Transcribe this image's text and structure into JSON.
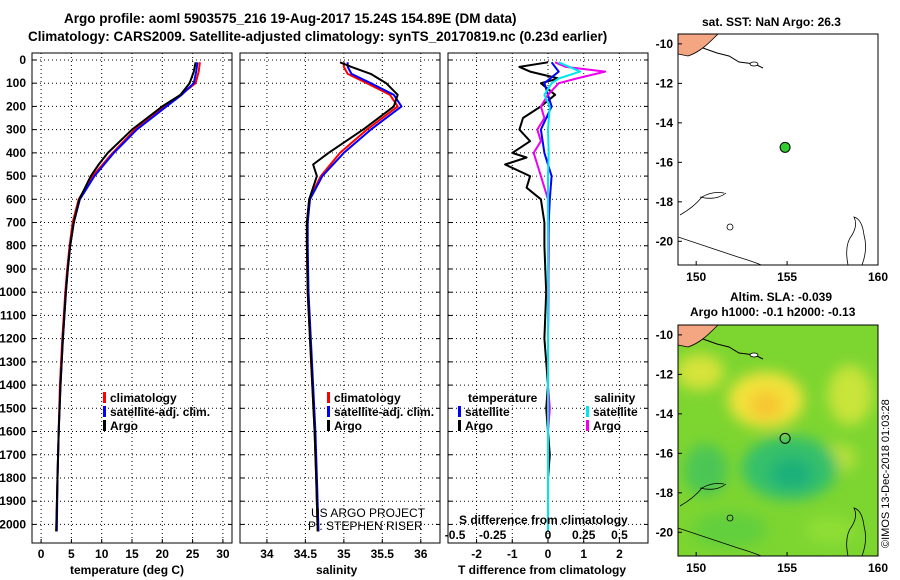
{
  "header": {
    "line1": "Argo profile: aoml 5903575_216 19-Aug-2017 15.24S 154.89E (DM data)",
    "line2": "Climatology: CARS2009. Satellite-adjusted climatology: synTS_20170819.nc (0.23d earlier)"
  },
  "colors": {
    "climatology": "#ff0000",
    "satellite": "#0000ff",
    "argo": "#000000",
    "sal_satellite": "#00e5ee",
    "sal_argo": "#ee00ee",
    "land": "#f4a582",
    "float_marker": "#33cc33"
  },
  "depth_axis": {
    "ticks": [
      0,
      100,
      200,
      300,
      400,
      500,
      600,
      700,
      800,
      900,
      1000,
      1100,
      1200,
      1300,
      1400,
      1500,
      1600,
      1700,
      1800,
      1900,
      2000
    ],
    "ylim": [
      2080,
      -30
    ]
  },
  "chart_data": [
    {
      "name": "temperature",
      "type": "line",
      "xlabel": "temperature (deg C)",
      "xlim": [
        -1.5,
        31.5
      ],
      "xticks": [
        0,
        5,
        10,
        15,
        20,
        25,
        30
      ],
      "ylabel": "depth",
      "legend": {
        "climatology": "climatology",
        "satellite": "satellite-adj. clim.",
        "argo": "Argo"
      },
      "series": [
        {
          "name": "climatology",
          "color_key": "climatology",
          "depth": [
            10,
            50,
            100,
            150,
            200,
            300,
            400,
            500,
            600,
            700,
            800,
            900,
            1000,
            1200,
            1400,
            1600,
            1800,
            2030
          ],
          "values": [
            26.2,
            26.0,
            25.5,
            23.0,
            20.5,
            15.5,
            11.8,
            8.5,
            6.2,
            5.2,
            4.7,
            4.3,
            4.0,
            3.5,
            3.1,
            2.9,
            2.7,
            2.5
          ]
        },
        {
          "name": "satellite-adj. clim.",
          "color_key": "satellite",
          "depth": [
            10,
            50,
            100,
            150,
            200,
            300,
            400,
            500,
            600,
            700,
            800,
            900,
            1000,
            1200,
            1400,
            1600,
            1800,
            2030
          ],
          "values": [
            25.8,
            25.6,
            25.2,
            23.2,
            20.7,
            15.8,
            12.0,
            8.8,
            6.4,
            5.4,
            4.8,
            4.4,
            4.1,
            3.6,
            3.2,
            2.9,
            2.7,
            2.6
          ]
        },
        {
          "name": "Argo",
          "color_key": "argo",
          "depth": [
            10,
            50,
            100,
            150,
            200,
            300,
            400,
            450,
            500,
            600,
            700,
            800,
            900,
            1000,
            1200,
            1400,
            1600,
            1800,
            2030
          ],
          "values": [
            25.5,
            25.2,
            24.5,
            23.0,
            20.0,
            15.0,
            11.0,
            9.5,
            8.2,
            6.3,
            5.4,
            4.8,
            4.4,
            4.1,
            3.6,
            3.2,
            2.9,
            2.7,
            2.5
          ]
        }
      ]
    },
    {
      "name": "salinity",
      "type": "line",
      "xlabel": "salinity",
      "xlim": [
        33.65,
        36.25
      ],
      "xticks": [
        34,
        34.5,
        35,
        35.5,
        36
      ],
      "xticklabels": [
        "34",
        "34.5",
        "35",
        "35.5",
        "36"
      ],
      "legend": {
        "climatology": "climatology",
        "satellite": "satellite-adj. clim.",
        "argo": "Argo"
      },
      "credit1": "US ARGO PROJECT",
      "credit2": "PI: STEPHEN RISER",
      "series": [
        {
          "name": "climatology",
          "color_key": "climatology",
          "depth": [
            10,
            30,
            60,
            100,
            150,
            200,
            300,
            400,
            500,
            600,
            700,
            800,
            1000,
            1200,
            1400,
            1600,
            1800,
            2030
          ],
          "values": [
            35.0,
            35.0,
            35.05,
            35.3,
            35.6,
            35.7,
            35.3,
            34.95,
            34.7,
            34.55,
            34.52,
            34.52,
            34.53,
            34.56,
            34.59,
            34.62,
            34.64,
            34.66
          ]
        },
        {
          "name": "satellite-adj. clim.",
          "color_key": "satellite",
          "depth": [
            10,
            30,
            60,
            100,
            150,
            200,
            300,
            400,
            500,
            600,
            700,
            800,
            1000,
            1200,
            1400,
            1600,
            1800,
            2030
          ],
          "values": [
            35.05,
            35.05,
            35.1,
            35.35,
            35.65,
            35.75,
            35.35,
            35.0,
            34.72,
            34.56,
            34.53,
            34.53,
            34.54,
            34.57,
            34.6,
            34.63,
            34.65,
            34.67
          ]
        },
        {
          "name": "Argo",
          "color_key": "argo",
          "depth": [
            10,
            30,
            60,
            100,
            150,
            200,
            300,
            400,
            450,
            500,
            600,
            700,
            800,
            1000,
            1200,
            1400,
            1600,
            1800,
            2030
          ],
          "values": [
            34.95,
            35.1,
            35.35,
            35.55,
            35.7,
            35.65,
            35.25,
            34.8,
            34.6,
            34.65,
            34.55,
            34.52,
            34.52,
            34.53,
            34.56,
            34.59,
            34.62,
            34.64,
            34.66
          ]
        }
      ]
    },
    {
      "name": "difference",
      "type": "line",
      "xlabel": "T difference from climatology",
      "xlim": [
        -2.8,
        2.8
      ],
      "xticks": [
        -2,
        -1,
        0,
        1,
        2
      ],
      "sal_title": "S difference from climatology",
      "sal_ticks": [
        "-0.5",
        "-0.25",
        "0",
        "0.25",
        "0.5"
      ],
      "sal_tick_temp_positions": [
        -2.6,
        -1.55,
        0,
        1,
        2
      ],
      "legend": {
        "temperature": "temperature",
        "salinity": "salinity",
        "satellite": "satellite",
        "argo": "Argo"
      },
      "series": [
        {
          "name": "temperature Argo",
          "color_key": "argo",
          "depth": [
            10,
            30,
            50,
            80,
            100,
            150,
            200,
            250,
            300,
            350,
            400,
            420,
            450,
            500,
            550,
            600,
            700,
            800,
            1000,
            1200,
            1400,
            1500,
            1600,
            1700,
            1800,
            2030
          ],
          "values": [
            0,
            -0.8,
            -0.5,
            0.3,
            -0.2,
            0.2,
            -0.2,
            -0.7,
            -0.8,
            -0.5,
            -1.0,
            -0.6,
            -1.2,
            -0.5,
            -0.6,
            -0.2,
            -0.1,
            -0.1,
            -0.05,
            -0.1,
            0,
            -0.05,
            0,
            0.05,
            0,
            0
          ]
        },
        {
          "name": "temperature satellite",
          "color_key": "satellite",
          "depth": [
            10,
            50,
            100,
            200,
            300,
            400,
            500,
            600,
            700,
            800,
            1000,
            1200,
            1400,
            1600,
            1800,
            2030
          ],
          "values": [
            0.1,
            0.3,
            -0.1,
            0.1,
            -0.2,
            -0.1,
            0.1,
            0.05,
            0.02,
            0.02,
            0.01,
            0,
            0,
            0,
            0,
            0
          ]
        },
        {
          "name": "salinity Argo",
          "color_key": "sal_argo",
          "depth": [
            10,
            30,
            50,
            80,
            100,
            150,
            200,
            250,
            300,
            350,
            400,
            450,
            500,
            600,
            700,
            800,
            1000,
            1200,
            1400,
            1500,
            1600,
            1700,
            1800,
            2030
          ],
          "values": [
            0.2,
            0.5,
            1.6,
            0.8,
            0.3,
            0,
            -0.2,
            -0.1,
            -0.3,
            -0.2,
            -0.4,
            -0.3,
            -0.2,
            0,
            0,
            0.02,
            0.01,
            0,
            0,
            0.05,
            0,
            0,
            0,
            0
          ]
        },
        {
          "name": "salinity satellite",
          "color_key": "sal_satellite",
          "depth": [
            10,
            30,
            50,
            80,
            100,
            150,
            200,
            300,
            400,
            500,
            600,
            800,
            1000,
            1200,
            1400,
            1600,
            1800,
            2030
          ],
          "values": [
            0.3,
            0.6,
            0.9,
            0.3,
            0.1,
            -0.1,
            0.05,
            0,
            0.02,
            0,
            0,
            0,
            0,
            0,
            0,
            0,
            0,
            0
          ]
        }
      ]
    },
    {
      "name": "sst_map",
      "type": "scatter",
      "title": "sat. SST: NaN Argo: 26.3",
      "xlim": [
        149,
        160
      ],
      "ylim": [
        -21.2,
        -9.5
      ],
      "xticks": [
        150,
        155,
        160
      ],
      "yticks": [
        -10,
        -12,
        -14,
        -16,
        -18,
        -20
      ],
      "points": [
        {
          "x": 154.89,
          "y": -15.24
        }
      ]
    },
    {
      "name": "sla_map",
      "type": "heatmap",
      "title": "Altim. SLA: -0.039",
      "subtitle": "Argo h1000: -0.1 h2000: -0.13",
      "xlim": [
        149,
        160
      ],
      "ylim": [
        -21.2,
        -9.5
      ],
      "xticks": [
        150,
        155,
        160
      ],
      "yticks": [
        -10,
        -12,
        -14,
        -16,
        -18,
        -20
      ],
      "points": [
        {
          "x": 154.89,
          "y": -15.24
        }
      ]
    }
  ],
  "footer": {
    "stamp": "©IMOS 13-Dec-2018 01:03:28"
  }
}
